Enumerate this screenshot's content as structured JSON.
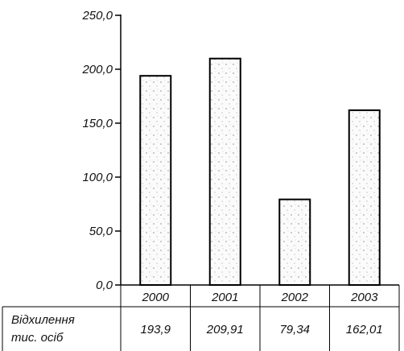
{
  "chart_data": {
    "type": "bar",
    "categories": [
      "2000",
      "2001",
      "2002",
      "2003"
    ],
    "series": [
      {
        "name": "Відхилення тис. осіб",
        "values": [
          193.9,
          209.91,
          79.34,
          162.01
        ]
      }
    ],
    "value_labels": [
      "193,9",
      "209,91",
      "79,34",
      "162,01"
    ],
    "row_label": [
      "Відхилення",
      "тис. осіб"
    ],
    "yticks": [
      "0,0",
      "50,0",
      "100,0",
      "150,0",
      "200,0",
      "250,0"
    ],
    "ylim": [
      0,
      250
    ],
    "grid": false,
    "bar_fill": "#fbfbfb",
    "bar_stroke": "#000000"
  }
}
